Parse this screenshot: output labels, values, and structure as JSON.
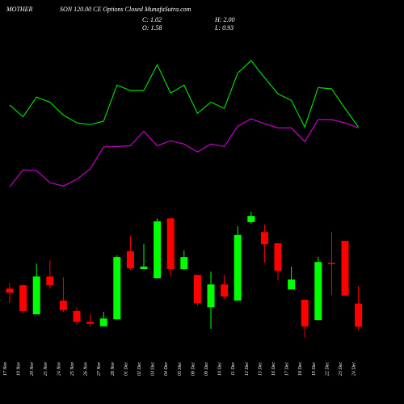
{
  "chart_data": {
    "type": "candlestick",
    "title_left": "MOTHER",
    "title_right": "SON 120.00 CE Options Closed MunafaSutra.com",
    "stats": {
      "close": "C: 1.02",
      "open": "O: 1.58",
      "high": "H: 2.00",
      "low": "L: 0.93"
    },
    "categories": [
      "17 Nov",
      "19 Nov",
      "20 Nov",
      "21 Nov",
      "24 Nov",
      "25 Nov",
      "26 Nov",
      "27 Nov",
      "28 Nov",
      "01 Dec",
      "02 Dec",
      "03 Dec",
      "04 Dec",
      "05 Dec",
      "08 Dec",
      "09 Dec",
      "10 Dec",
      "11 Dec",
      "12 Dec",
      "15 Dec",
      "16 Dec",
      "17 Dec",
      "18 Dec",
      "19 Dec",
      "22 Dec",
      "23 Dec",
      "24 Dec"
    ],
    "open": [
      1.94,
      2.02,
      1.32,
      2.23,
      1.65,
      1.4,
      1.14,
      1.03,
      1.2,
      2.84,
      2.41,
      2.19,
      3.63,
      2.41,
      2.27,
      1.49,
      2.04,
      1.65,
      3.54,
      3.3,
      3.03,
      1.92,
      1.67,
      1.18,
      2.56,
      3.09,
      1.58
    ],
    "close": [
      1.84,
      1.4,
      2.23,
      2.02,
      1.42,
      1.14,
      1.09,
      1.22,
      2.7,
      2.43,
      2.47,
      3.56,
      2.41,
      2.7,
      1.59,
      2.04,
      1.75,
      3.23,
      3.69,
      3.01,
      2.37,
      2.16,
      1.03,
      2.58,
      2.53,
      1.77,
      1.02
    ],
    "high": [
      2.08,
      2.04,
      2.54,
      2.62,
      2.21,
      1.49,
      1.32,
      1.38,
      2.74,
      3.21,
      3.01,
      3.63,
      3.63,
      2.86,
      2.27,
      2.35,
      2.27,
      3.44,
      3.79,
      3.48,
      3.03,
      2.47,
      1.67,
      2.7,
      3.3,
      3.09,
      2.0
    ],
    "low": [
      1.59,
      1.34,
      1.32,
      1.94,
      1.38,
      1.07,
      1.03,
      1.03,
      1.2,
      2.39,
      2.41,
      2.19,
      2.23,
      2.39,
      1.53,
      0.97,
      1.69,
      1.65,
      3.5,
      2.56,
      2.14,
      1.92,
      0.76,
      1.18,
      1.79,
      1.77,
      0.93
    ],
    "up_color": "#00ff00",
    "down_color": "#ff0000",
    "lines": [
      {
        "color": "#00dd00",
        "values": [
          6.36,
          6.08,
          6.55,
          6.43,
          6.12,
          5.93,
          5.89,
          5.97,
          6.84,
          6.71,
          6.71,
          7.33,
          6.65,
          6.84,
          6.16,
          6.43,
          6.28,
          7.13,
          7.43,
          7.02,
          6.63,
          6.47,
          5.83,
          6.78,
          6.75,
          6.28,
          5.83
        ]
      },
      {
        "color": "#cc00cc",
        "values": [
          4.39,
          4.8,
          4.78,
          4.49,
          4.41,
          4.57,
          4.82,
          5.35,
          5.36,
          5.38,
          5.73,
          5.38,
          5.5,
          5.42,
          5.23,
          5.42,
          5.36,
          5.85,
          6.03,
          5.91,
          5.81,
          5.81,
          5.48,
          6.01,
          6.01,
          5.93,
          5.81
        ]
      }
    ],
    "ylim": [
      -0.84,
      8.89
    ]
  }
}
